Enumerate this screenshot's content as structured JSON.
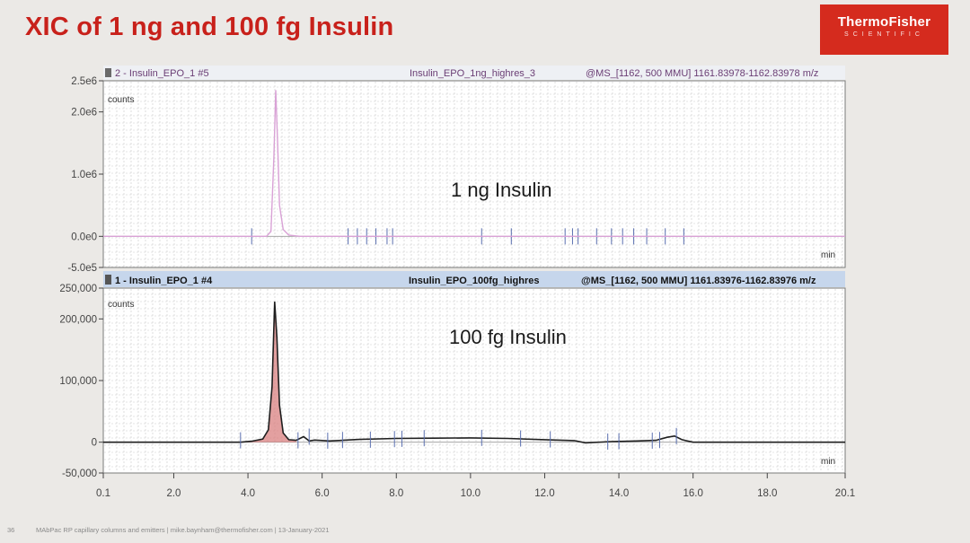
{
  "slide": {
    "title": "XIC of 1 ng and 100 fg Insulin",
    "logo_main": "ThermoFisher",
    "logo_sub": "SCIENTIFIC",
    "footer_page": "36",
    "footer_text": "MAbPac RP capillary columns and emitters | mike.baynham@thermofisher.com | 13-January-2021"
  },
  "colors": {
    "title_red": "#c8211b",
    "trace_top": "#d9a2d6",
    "trace_bottom": "#1f1f1f",
    "fill_bottom": "#d98080",
    "tick": "#5a6fb0"
  },
  "chart_data": [
    {
      "type": "line",
      "panel": "top",
      "header_left": "2 - Insulin_EPO_1 #5",
      "header_mid": "Insulin_EPO_1ng_highres_3",
      "header_right": "@MS_[1162, 500 MMU] 1161.83978-1162.83978 m/z",
      "ylabel": "counts",
      "xlabel": "min",
      "annotation": "1 ng Insulin",
      "yticks": [
        "2.5e6",
        "2.0e6",
        "1.0e6",
        "0.0e0",
        "-5.0e5"
      ],
      "ytick_values": [
        2500000,
        2000000,
        1000000,
        0,
        -500000
      ],
      "ylim": [
        -500000,
        2500000
      ],
      "xlim": [
        0.1,
        20.1
      ],
      "series": [
        {
          "name": "XIC 1 ng",
          "x": [
            0.1,
            4.5,
            4.62,
            4.7,
            4.75,
            4.8,
            4.85,
            4.95,
            5.1,
            5.4,
            20.1
          ],
          "y": [
            0,
            0,
            80000,
            1300000,
            2350000,
            1500000,
            500000,
            110000,
            20000,
            0,
            0
          ]
        }
      ],
      "markers_x": [
        4.1,
        6.7,
        6.95,
        7.2,
        7.45,
        7.75,
        7.9,
        10.3,
        11.1,
        12.55,
        12.75,
        12.9,
        13.4,
        13.8,
        14.1,
        14.4,
        14.75,
        15.25,
        15.75
      ],
      "markers_y": [
        0,
        0,
        0,
        0,
        0,
        0,
        0,
        0,
        0,
        0,
        0,
        0,
        0,
        0,
        0,
        0,
        0,
        0,
        0
      ]
    },
    {
      "type": "area",
      "panel": "bottom",
      "header_left": "1 - Insulin_EPO_1 #4",
      "header_mid": "Insulin_EPO_100fg_highres",
      "header_right": "@MS_[1162, 500 MMU] 1161.83976-1162.83976 m/z",
      "ylabel": "counts",
      "xlabel": "min",
      "annotation": "100 fg Insulin",
      "yticks": [
        "250,000",
        "200,000",
        "100,000",
        "0",
        "-50,000"
      ],
      "ytick_values": [
        250000,
        200000,
        100000,
        0,
        -50000
      ],
      "ylim": [
        -50000,
        250000
      ],
      "xlim": [
        0.1,
        20.1
      ],
      "xticks": [
        "0.1",
        "2.0",
        "4.0",
        "6.0",
        "8.0",
        "10.0",
        "12.0",
        "14.0",
        "16.0",
        "18.0",
        "20.1"
      ],
      "xtick_values": [
        0.1,
        2.0,
        4.0,
        6.0,
        8.0,
        10.0,
        12.0,
        14.0,
        16.0,
        18.0,
        20.1
      ],
      "series": [
        {
          "name": "XIC 100 fg",
          "x": [
            0.1,
            3.8,
            4.1,
            4.4,
            4.55,
            4.65,
            4.72,
            4.78,
            4.85,
            4.95,
            5.1,
            5.3,
            5.5,
            5.65,
            5.8,
            6.2,
            7.0,
            8.0,
            9.0,
            10.0,
            11.0,
            12.0,
            12.8,
            13.1,
            13.8,
            14.5,
            15.0,
            15.3,
            15.5,
            15.7,
            16.0,
            20.1
          ],
          "y": [
            0,
            0,
            1500,
            5000,
            20000,
            90000,
            228000,
            170000,
            60000,
            15000,
            4000,
            3000,
            9000,
            2000,
            3500,
            2000,
            4500,
            6000,
            6500,
            7000,
            6000,
            4000,
            2500,
            -1000,
            1000,
            2000,
            3000,
            8000,
            10000,
            4000,
            0,
            0
          ]
        }
      ],
      "markers_x": [
        3.8,
        5.35,
        5.65,
        6.15,
        6.55,
        7.3,
        7.95,
        8.15,
        8.75,
        10.3,
        11.35,
        12.15,
        13.7,
        14.0,
        14.9,
        15.1,
        15.55
      ],
      "markers_y": [
        3000,
        3000,
        9000,
        2500,
        3500,
        4000,
        5000,
        5500,
        6500,
        7000,
        6000,
        4500,
        1000,
        1500,
        2500,
        3500,
        10000
      ]
    }
  ]
}
